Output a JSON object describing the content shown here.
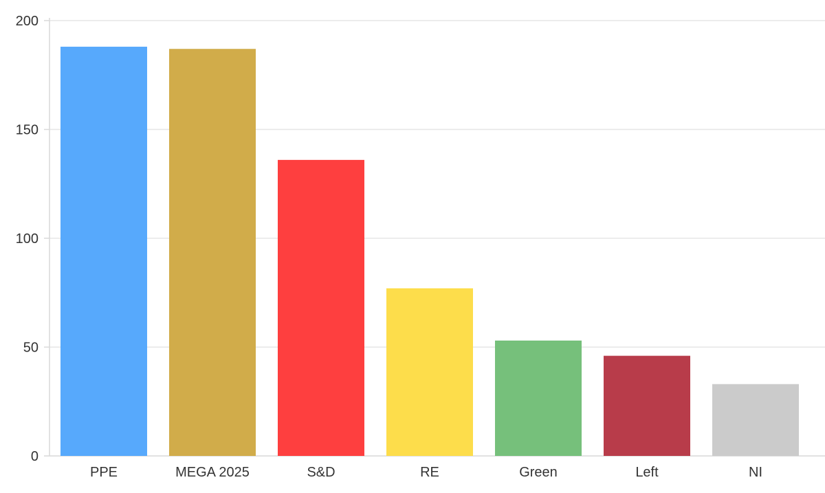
{
  "chart_data": {
    "type": "bar",
    "title": "",
    "xlabel": "",
    "ylabel": "",
    "categories": [
      "PPE",
      "MEGA 2025",
      "S&D",
      "RE",
      "Green",
      "Left",
      "NI"
    ],
    "values": [
      188,
      187,
      136,
      77,
      53,
      46,
      33
    ],
    "colors": [
      "#57a9fc",
      "#d1ac4a",
      "#fe3f3f",
      "#fddd4b",
      "#76c07b",
      "#b83c4a",
      "#cbcbcb"
    ],
    "ylim": [
      0,
      200
    ],
    "yticks": [
      0,
      50,
      100,
      150,
      200
    ],
    "ytick_labels": [
      "0",
      "50",
      "100",
      "150",
      "200"
    ],
    "grid": true,
    "legend": "none"
  }
}
